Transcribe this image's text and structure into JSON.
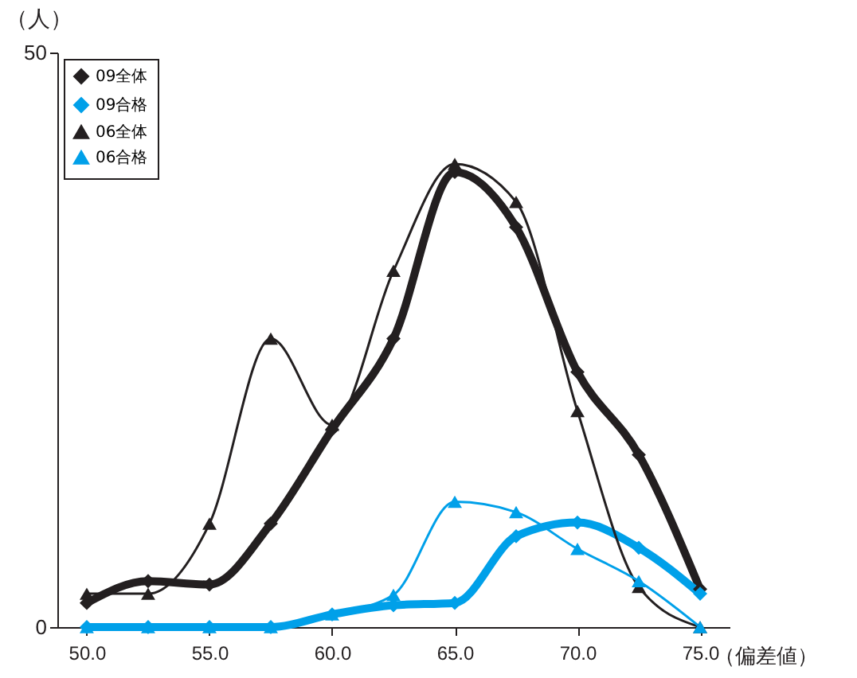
{
  "chart_data": {
    "type": "line",
    "xlabel": "（偏差値）",
    "ylabel": "（人）",
    "x": [
      50,
      52.5,
      55,
      57.5,
      60,
      62.5,
      65,
      67.5,
      70,
      72.5,
      75
    ],
    "xlim": [
      48.8,
      76.2
    ],
    "xticks": [
      {
        "value": 50,
        "label": "50.0"
      },
      {
        "value": 55,
        "label": "55.0"
      },
      {
        "value": 60,
        "label": "60.0"
      },
      {
        "value": 65,
        "label": "65.0"
      },
      {
        "value": 70,
        "label": "70.0"
      },
      {
        "value": 75,
        "label": "75.0"
      }
    ],
    "ylim": [
      0,
      50
    ],
    "yticks": [
      0,
      50
    ],
    "grid": false,
    "legend": "top left",
    "series": [
      {
        "name": "09全体",
        "color": "#231f20",
        "marker": "diamond",
        "values": [
          2.1,
          4.0,
          3.7,
          9.0,
          17.2,
          25.1,
          39.6,
          34.8,
          22.2,
          15.0,
          3.3
        ]
      },
      {
        "name": "09合格",
        "color": "#00a0e9",
        "marker": "diamond",
        "values": [
          0,
          0,
          0,
          0,
          1.1,
          1.9,
          2.1,
          7.9,
          9.1,
          6.9,
          2.9
        ]
      },
      {
        "name": "06全体",
        "color": "#231f20",
        "marker": "triangle",
        "values": [
          2.9,
          2.9,
          9.0,
          25.1,
          17.6,
          31.0,
          40.3,
          37.0,
          18.8,
          3.5,
          0
        ]
      },
      {
        "name": "06合格",
        "color": "#00a0e9",
        "marker": "triangle",
        "values": [
          0,
          0,
          0,
          0,
          1.1,
          2.8,
          10.9,
          10.0,
          6.8,
          4.0,
          0
        ]
      }
    ]
  }
}
